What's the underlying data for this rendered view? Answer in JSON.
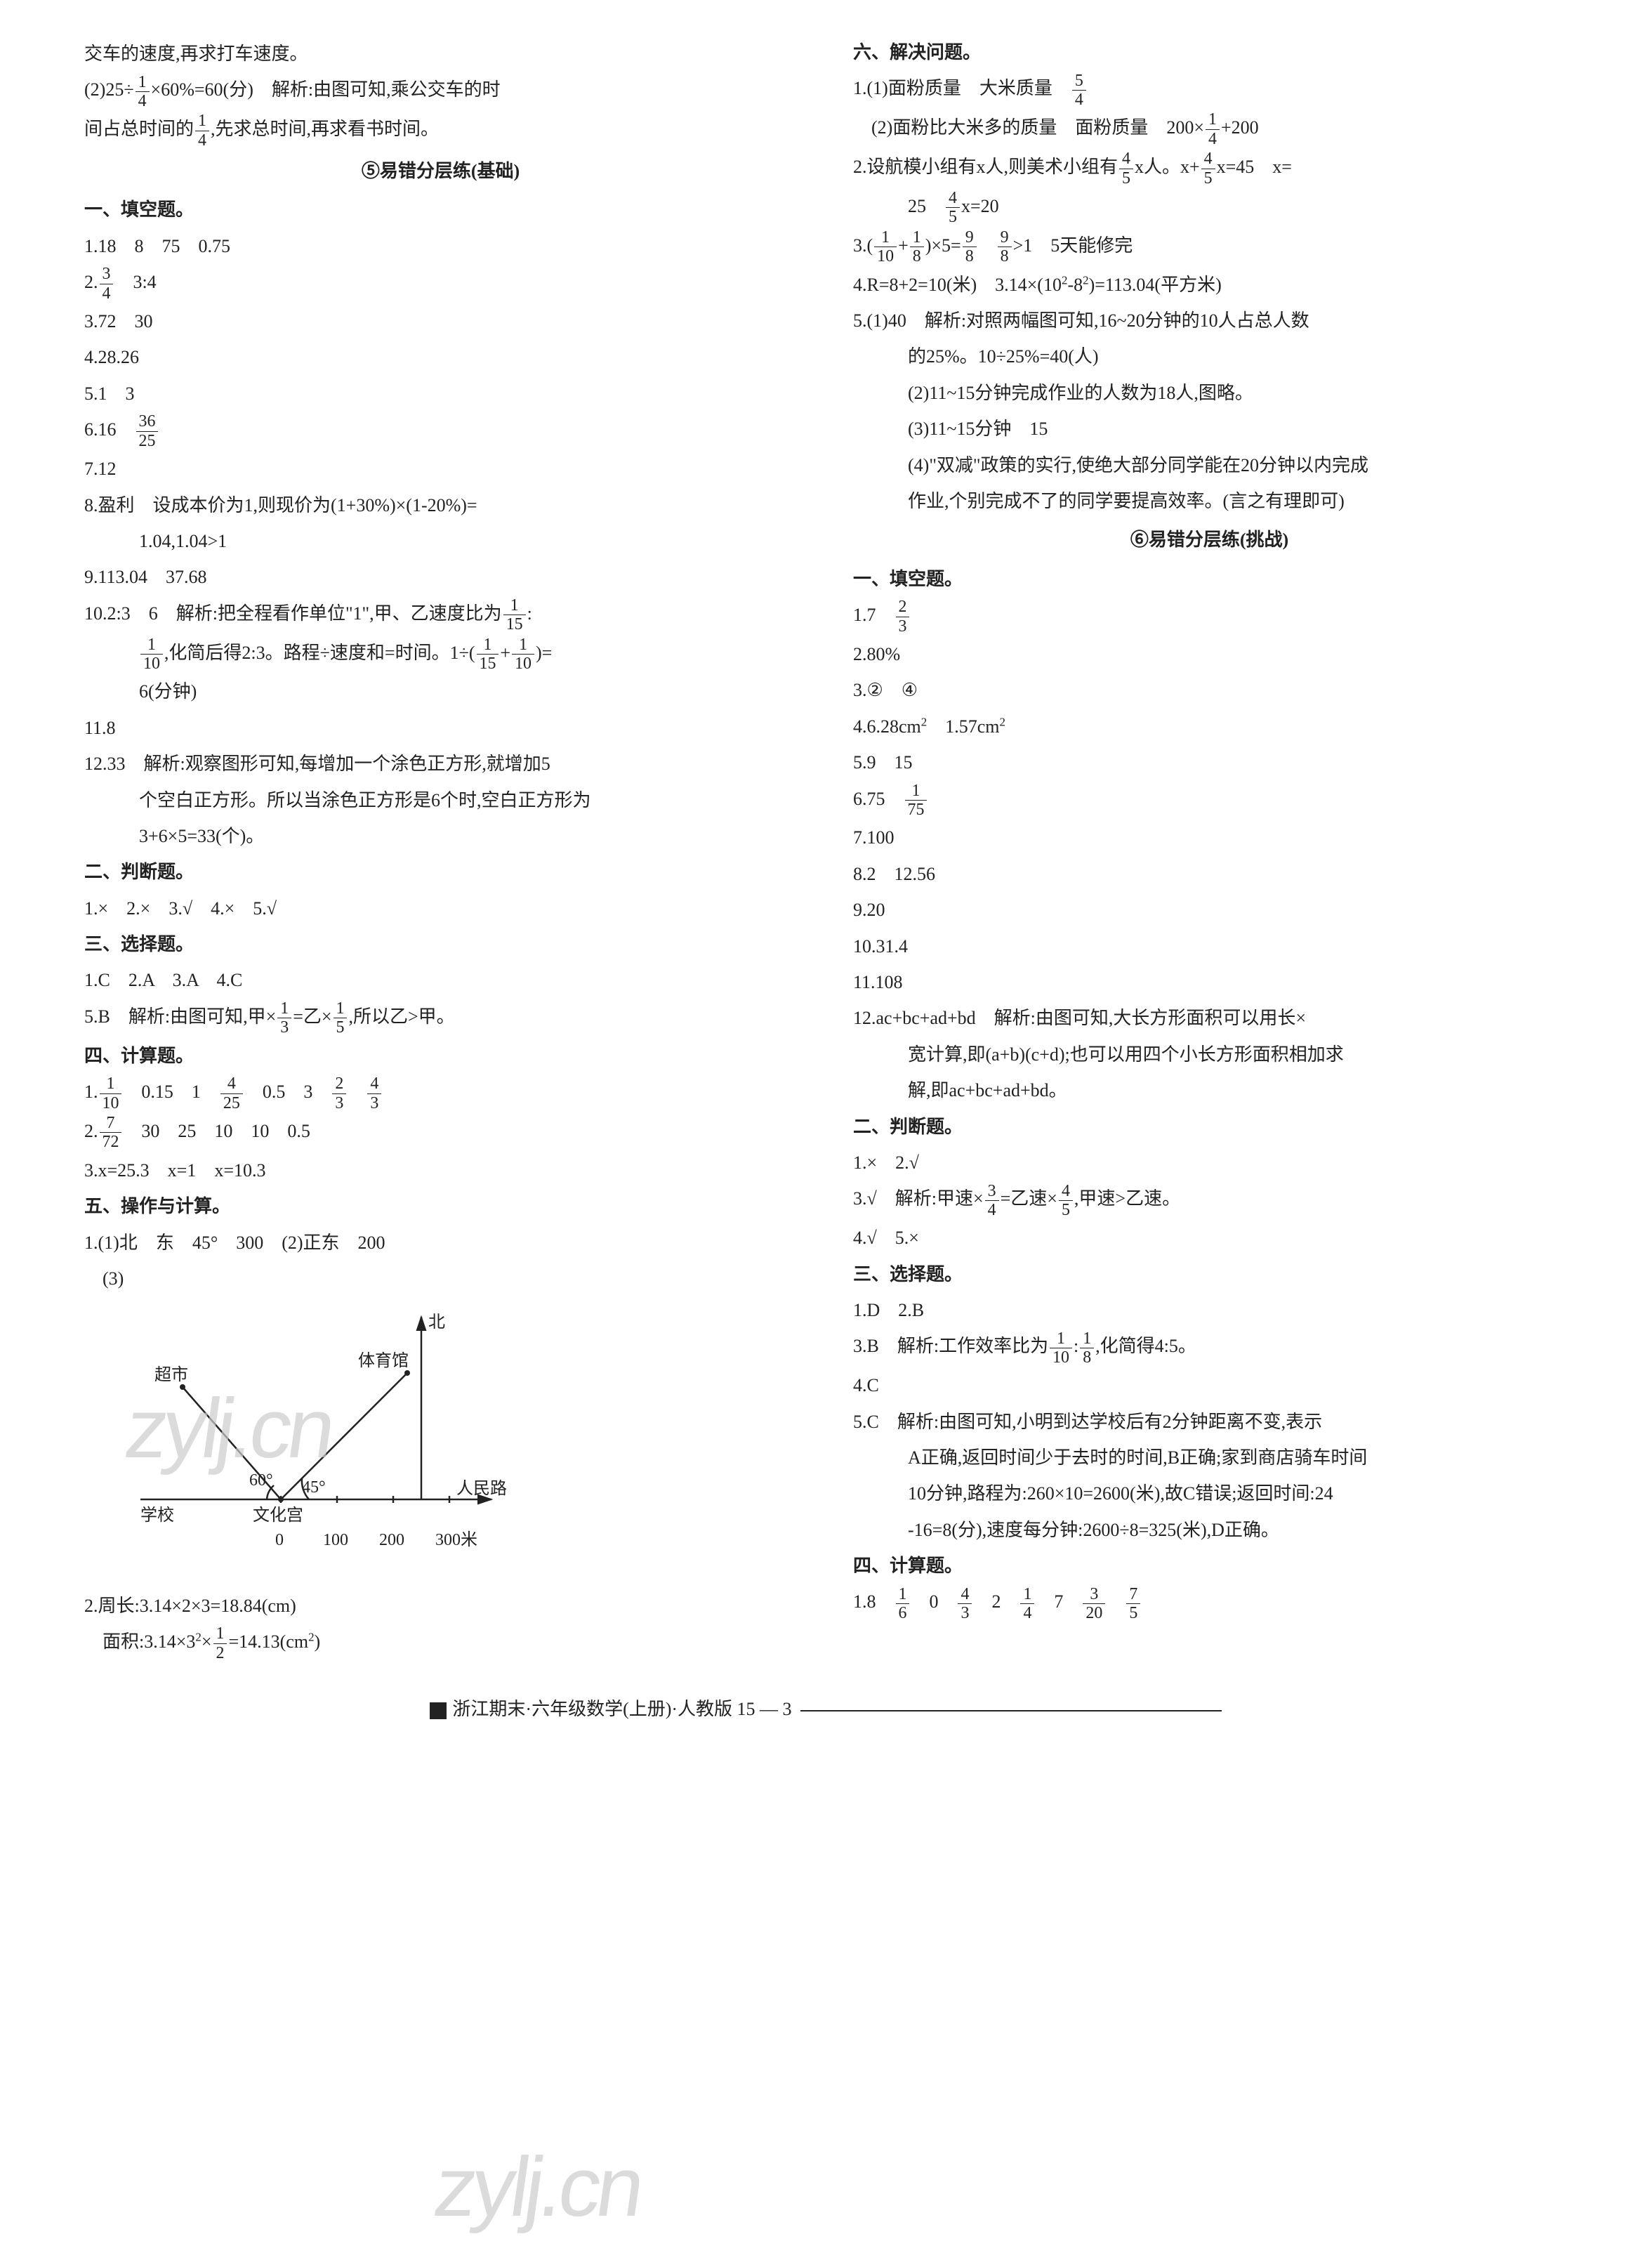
{
  "watermark_text": "zylj.cn",
  "leftColumn": {
    "intro": [
      "交车的速度,再求打车速度。",
      "(2)25÷{1/4}×60%=60(分)　解析:由图可知,乘公交车的时",
      "间占总时间的{1/4},先求总时间,再求看书时间。"
    ],
    "section5_title": "⑤易错分层练(基础)",
    "fill_heading": "一、填空题。",
    "fill": [
      "1.18　8　75　0.75",
      "2.{3/4}　3:4",
      "3.72　30",
      "4.28.26",
      "5.1　3",
      "6.16　{36/25}",
      "7.12",
      "8.盈利　设成本价为1,则现价为(1+30%)×(1-20%)=",
      "　1.04,1.04>1",
      "9.113.04　37.68",
      "10.2:3　6　解析:把全程看作单位\"1\",甲、乙速度比为{1/15}:",
      "　{1/10},化简后得2:3。路程÷速度和=时间。1÷({1/15}+{1/10})=",
      "　6(分钟)",
      "11.8",
      "12.33　解析:观察图形可知,每增加一个涂色正方形,就增加5",
      "　个空白正方形。所以当涂色正方形是6个时,空白正方形为",
      "　3+6×5=33(个)。"
    ],
    "judge_heading": "二、判断题。",
    "judge": "1.×　2.×　3.√　4.×　5.√",
    "choice_heading": "三、选择题。",
    "choice": [
      "1.C　2.A　3.A　4.C",
      "5.B　解析:由图可知,甲×{1/3}=乙×{1/5},所以乙>甲。"
    ],
    "calc_heading": "四、计算题。",
    "calc": [
      "1.{1/10}　0.15　1　{4/25}　0.5　3　{2/3}　{4/3}",
      "2.{7/72}　30　25　10　10　0.5",
      "3.x=25.3　x=1　x=10.3"
    ],
    "op_heading": "五、操作与计算。",
    "op": [
      "1.(1)北　东　45°　300　(2)正东　200",
      "　(3)"
    ],
    "diagram": {
      "labels": {
        "north": "北",
        "stadium": "体育馆",
        "supermarket": "超市",
        "school": "学校",
        "palace": "文化宫",
        "road": "人民路",
        "angle60": "60°",
        "angle45": "45°",
        "scale": [
          "0",
          "100",
          "200",
          "300米"
        ]
      },
      "colors": {
        "line": "#222",
        "text": "#222"
      }
    },
    "op2": [
      "2.周长:3.14×2×3=18.84(cm)",
      "　面积:3.14×3²×{1/2}=14.13(cm²)"
    ]
  },
  "rightColumn": {
    "solve_heading": "六、解决问题。",
    "solve": [
      "1.(1)面粉质量　大米质量　{5/4}",
      "　(2)面粉比大米多的质量　面粉质量　200×{1/4}+200",
      "2.设航模小组有x人,则美术小组有{4/5}x人。x+{4/5}x=45　x=",
      "　25　{4/5}x=20",
      "3.({1/10}+{1/8})×5={9/8}　{9/8}>1　5天能修完",
      "4.R=8+2=10(米)　3.14×(10²-8²)=113.04(平方米)",
      "5.(1)40　解析:对照两幅图可知,16~20分钟的10人占总人数",
      "　的25%。10÷25%=40(人)",
      "　(2)11~15分钟完成作业的人数为18人,图略。",
      "　(3)11~15分钟　15",
      "　(4)\"双减\"政策的实行,使绝大部分同学能在20分钟以内完成",
      "　作业,个别完成不了的同学要提高效率。(言之有理即可)"
    ],
    "section6_title": "⑥易错分层练(挑战)",
    "fill_heading": "一、填空题。",
    "fill": [
      "1.7　{2/3}",
      "2.80%",
      "3.②　④",
      "4.6.28cm²　1.57cm²",
      "5.9　15",
      "6.75　{1/75}",
      "7.100",
      "8.2　12.56",
      "9.20",
      "10.31.4",
      "11.108",
      "12.ac+bc+ad+bd　解析:由图可知,大长方形面积可以用长×",
      "　宽计算,即(a+b)(c+d);也可以用四个小长方形面积相加求",
      "　解,即ac+bc+ad+bd。"
    ],
    "judge_heading": "二、判断题。",
    "judge": [
      "1.×　2.√",
      "3.√　解析:甲速×{3/4}=乙速×{4/5},甲速>乙速。",
      "4.√　5.×"
    ],
    "choice_heading": "三、选择题。",
    "choice": [
      "1.D　2.B",
      "3.B　解析:工作效率比为{1/10}:{1/8},化简得4:5。",
      "4.C",
      "5.C　解析:由图可知,小明到达学校后有2分钟距离不变,表示",
      "　A正确,返回时间少于去时的时间,B正确;家到商店骑车时间",
      "　10分钟,路程为:260×10=2600(米),故C错误;返回时间:24",
      "　-16=8(分),速度每分钟:2600÷8=325(米),D正确。"
    ],
    "calc_heading": "四、计算题。",
    "calc": "1.8　{1/6}　0　{4/3}　2　{1/4}　7　{3/20}　{7/5}"
  },
  "footer": {
    "text": "浙江期末·六年级数学(上册)·人教版 15 — 3"
  }
}
